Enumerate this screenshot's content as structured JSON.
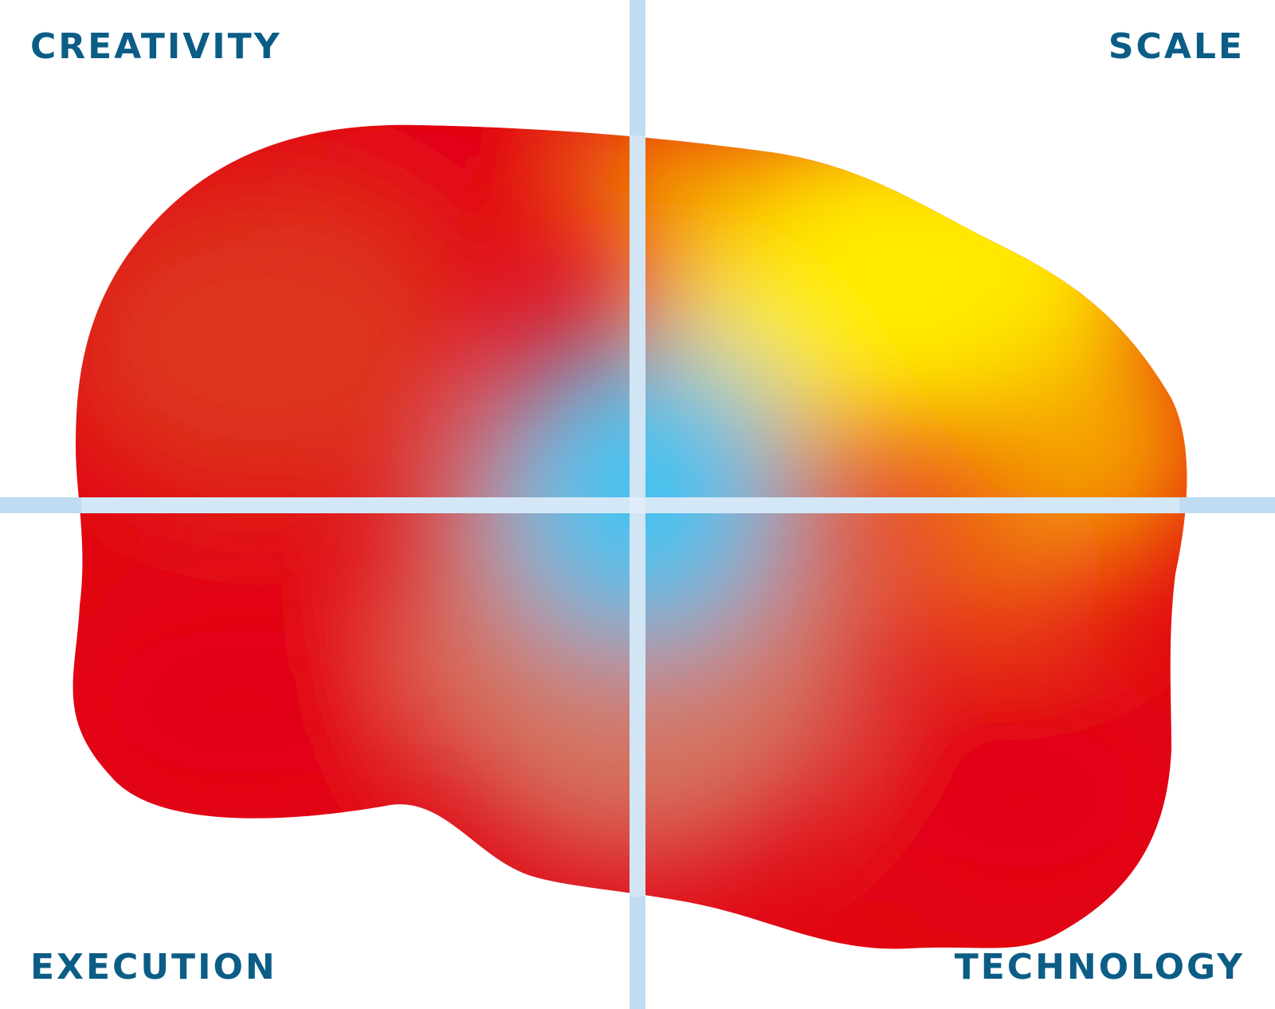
{
  "labels": {
    "top_left": "CREATIVITY",
    "top_right": "SCALE",
    "bottom_left": "EXECUTION",
    "bottom_right": "TECHNOLOGY"
  },
  "colors": {
    "label_text": "#0b5d86",
    "axis_line": "#bfdcf2",
    "axis_overlay": "#d6ecfb",
    "blob_red": "#e20613",
    "blob_orange": "#f5a400",
    "blob_yellow": "#ffeb00",
    "blob_center_blue": "#41c2f1",
    "background": "#ffffff"
  }
}
